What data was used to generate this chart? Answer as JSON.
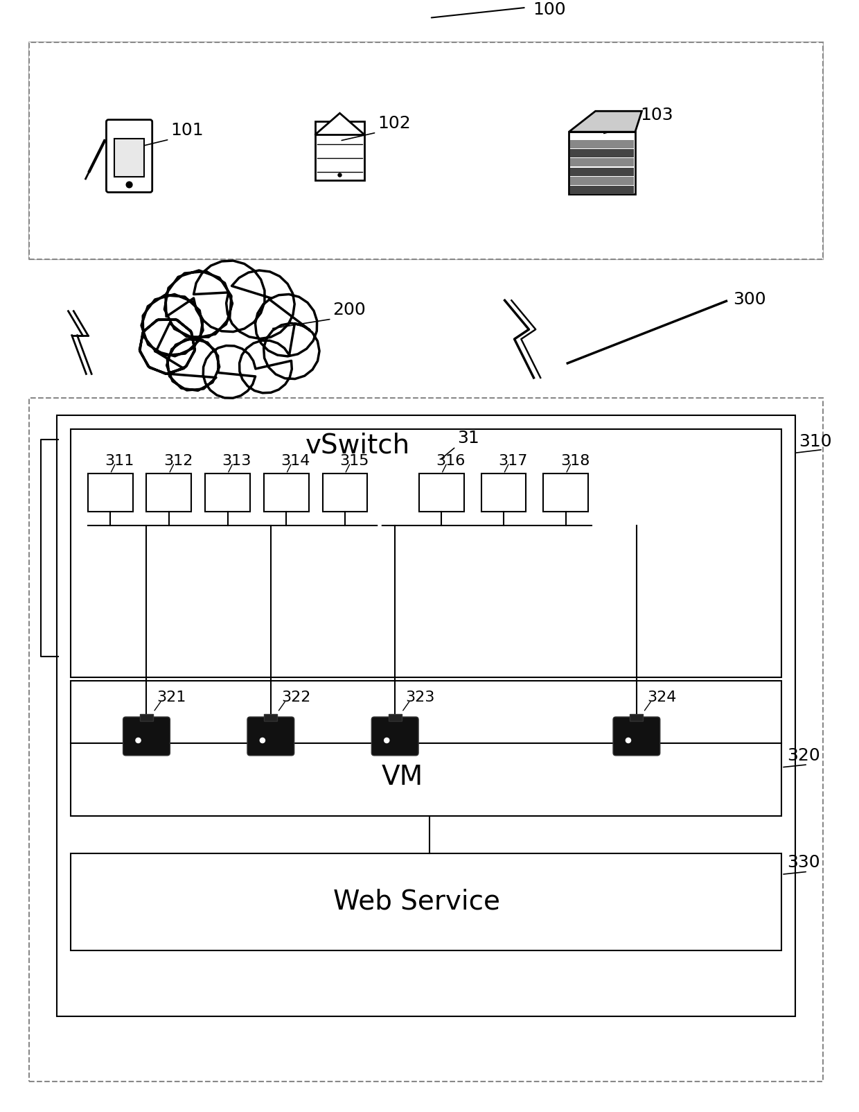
{
  "bg_color": "#ffffff",
  "line_color": "#000000",
  "dashed_color": "#888888",
  "label_100": "100",
  "label_200": "200",
  "label_300": "300",
  "label_101": "101",
  "label_102": "102",
  "label_103": "103",
  "label_310": "310",
  "label_31": "31",
  "label_vswitch": "vSwitch",
  "label_311": "311",
  "label_312": "312",
  "label_313": "313",
  "label_314": "314",
  "label_315": "315",
  "label_316": "316",
  "label_317": "317",
  "label_318": "318",
  "label_321": "321",
  "label_322": "322",
  "label_323": "323",
  "label_324": "324",
  "label_320": "320",
  "label_vm": "VM",
  "label_330": "330",
  "label_webservice": "Web Service"
}
